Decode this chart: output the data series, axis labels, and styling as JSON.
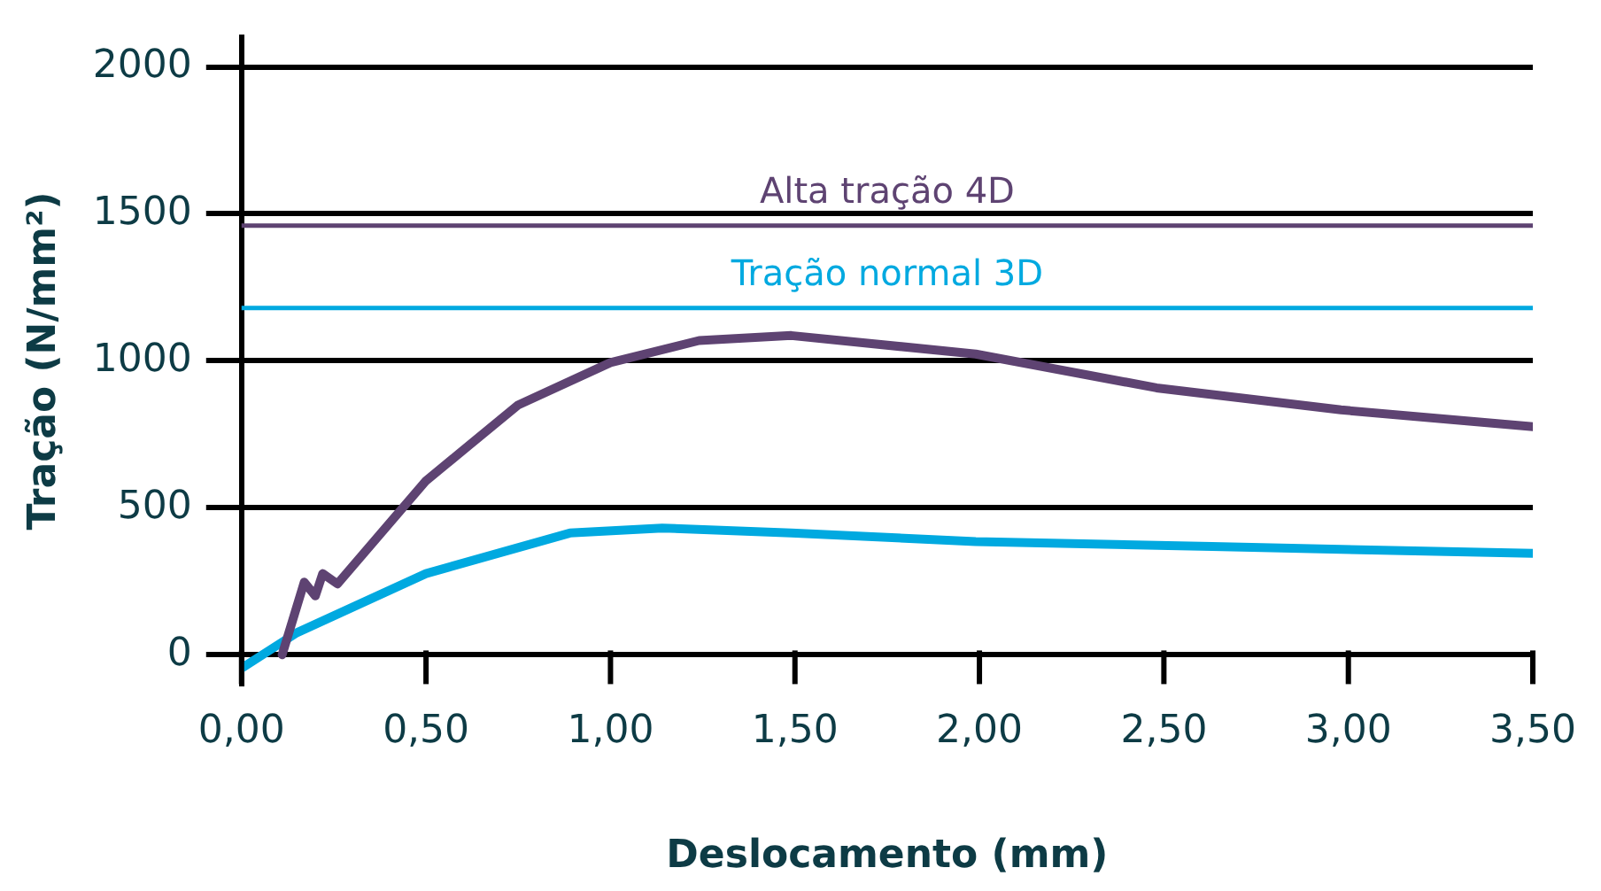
{
  "chart_data": {
    "type": "line",
    "xlabel": "Deslocamento (mm)",
    "ylabel": "Tração (N/mm²)",
    "xlim": [
      0,
      3.5
    ],
    "ylim": [
      -100,
      2100
    ],
    "xticks": [
      {
        "value": 0,
        "label": "0,00"
      },
      {
        "value": 0.5,
        "label": "0,50"
      },
      {
        "value": 1,
        "label": "1,00"
      },
      {
        "value": 1.5,
        "label": "1,50"
      },
      {
        "value": 2,
        "label": "2,00"
      },
      {
        "value": 2.5,
        "label": "2,50"
      },
      {
        "value": 3,
        "label": "3,00"
      },
      {
        "value": 3.5,
        "label": "3,50"
      }
    ],
    "yticks": [
      0,
      500,
      1000,
      1500,
      2000
    ],
    "grid": "y",
    "legend": false,
    "marker": "none",
    "line_style": "solid",
    "series": [
      {
        "color": "#5e4372",
        "x": [
          0.11,
          0.17,
          0.2,
          0.22,
          0.26,
          0.5,
          0.75,
          1.0,
          1.24,
          1.49,
          1.99,
          2.48,
          2.98,
          3.5
        ],
        "values": [
          0,
          247,
          200,
          276,
          241,
          592,
          850,
          994,
          1069,
          1086,
          1023,
          908,
          833,
          776
        ]
      },
      {
        "color": "#00a9e0",
        "x": [
          0,
          0.15,
          0.5,
          0.89,
          1.14,
          1.49,
          1.99,
          2.63,
          3.5
        ],
        "values": [
          -46,
          75,
          276,
          414,
          431,
          414,
          385,
          368,
          345
        ]
      }
    ],
    "ref_lines": [
      {
        "axis": "y",
        "value": 1460,
        "label": "Alta tração 4D",
        "color": "#5e4372"
      },
      {
        "axis": "y",
        "value": 1180,
        "label": "Tração normal 3D",
        "color": "#00a9e0"
      }
    ]
  }
}
